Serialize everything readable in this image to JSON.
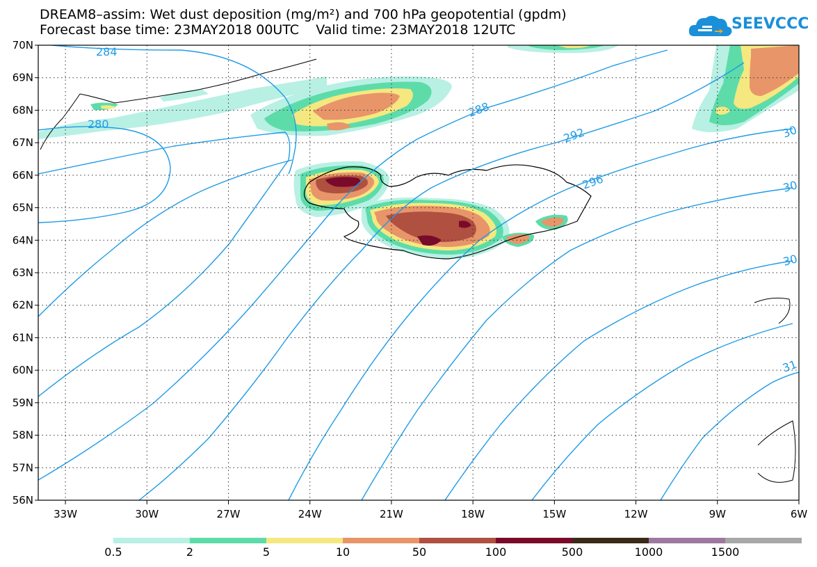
{
  "title_line1": "DREAM8–assim: Wet dust deposition (mg/m²) and 700 hPa geopotential (gpdm)",
  "title_line2": "Forecast base time: 23MAY2018 00UTC    Valid time: 23MAY2018 12UTC",
  "logo": {
    "text": "SEEVCCC",
    "icon": "cloud-logo-icon",
    "color": "#1b8fd8"
  },
  "map": {
    "lon_range": [
      -34.0,
      -6.0
    ],
    "lat_range": [
      56,
      70
    ],
    "lon_ticks": [
      {
        "lon": -33,
        "label": "33W"
      },
      {
        "lon": -30,
        "label": "30W"
      },
      {
        "lon": -27,
        "label": "27W"
      },
      {
        "lon": -24,
        "label": "24W"
      },
      {
        "lon": -21,
        "label": "21W"
      },
      {
        "lon": -18,
        "label": "18W"
      },
      {
        "lon": -15,
        "label": "15W"
      },
      {
        "lon": -12,
        "label": "12W"
      },
      {
        "lon": -9,
        "label": "9W"
      },
      {
        "lon": -6,
        "label": "6W"
      }
    ],
    "lat_ticks": [
      {
        "lat": 70,
        "label": "70N"
      },
      {
        "lat": 69,
        "label": "69N"
      },
      {
        "lat": 68,
        "label": "68N"
      },
      {
        "lat": 67,
        "label": "67N"
      },
      {
        "lat": 66,
        "label": "66N"
      },
      {
        "lat": 65,
        "label": "65N"
      },
      {
        "lat": 64,
        "label": "64N"
      },
      {
        "lat": 63,
        "label": "63N"
      },
      {
        "lat": 62,
        "label": "62N"
      },
      {
        "lat": 61,
        "label": "61N"
      },
      {
        "lat": 60,
        "label": "60N"
      },
      {
        "lat": 59,
        "label": "59N"
      },
      {
        "lat": 58,
        "label": "58N"
      },
      {
        "lat": 57,
        "label": "57N"
      },
      {
        "lat": 56,
        "label": "56N"
      }
    ],
    "contour_color": "#1e9be6",
    "contour_labels": [
      "284",
      "280",
      "288",
      "292",
      "296",
      "30",
      "30",
      "30",
      "31"
    ]
  },
  "legend": {
    "colors": [
      "#b8f0e4",
      "#5ddcaa",
      "#f5e880",
      "#e8956a",
      "#b05040",
      "#7a0a2a",
      "#3a2a18",
      "#9e78a0",
      "#a8a8a8"
    ],
    "labels": [
      "0.5",
      "2",
      "5",
      "10",
      "50",
      "100",
      "500",
      "1000",
      "1500"
    ]
  }
}
